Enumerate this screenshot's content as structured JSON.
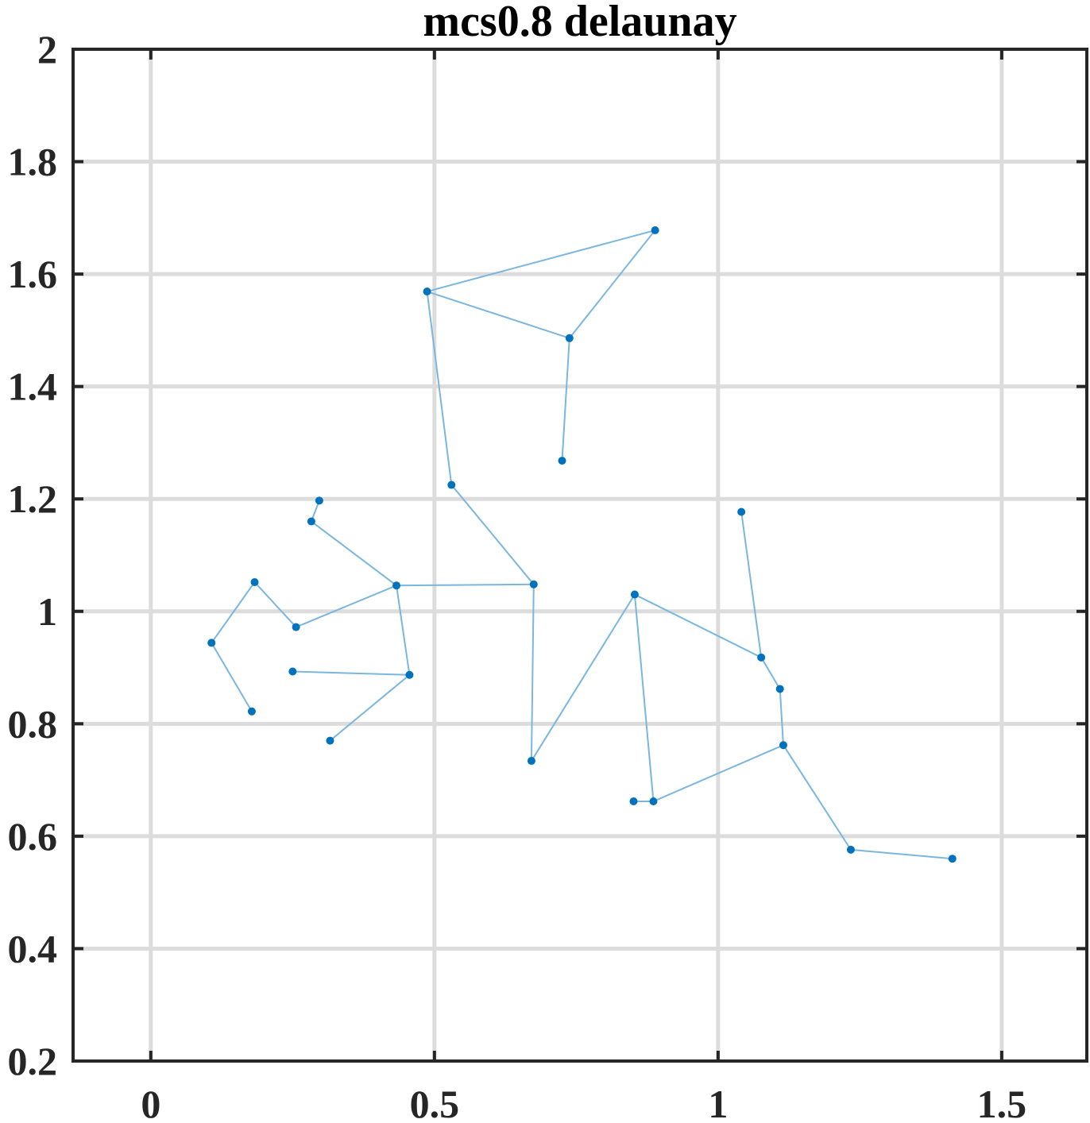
{
  "chart_data": {
    "type": "scatter",
    "title": "mcs0.8 delaunay",
    "xlabel": "",
    "ylabel": "",
    "xlim": [
      -0.137,
      1.65
    ],
    "ylim": [
      0.2,
      2.0
    ],
    "xticks": [
      0,
      0.5,
      1,
      1.5
    ],
    "xtick_labels": [
      "0",
      "0.5",
      "1",
      "1.5"
    ],
    "yticks": [
      0.2,
      0.4,
      0.6,
      0.8,
      1.0,
      1.2,
      1.4,
      1.6,
      1.8,
      2.0
    ],
    "ytick_labels": [
      "0.2",
      "0.4",
      "0.6",
      "0.8",
      "1",
      "1.2",
      "1.4",
      "1.6",
      "1.8",
      "2"
    ],
    "grid": true,
    "colors": {
      "points": "#0072bd",
      "edges": "#7ab6de",
      "grid": "#dcdcdc",
      "axes": "#262626"
    },
    "points": [
      {
        "x": 0.107,
        "y": 0.944
      },
      {
        "x": 0.183,
        "y": 1.052
      },
      {
        "x": 0.256,
        "y": 0.972
      },
      {
        "x": 0.178,
        "y": 0.822
      },
      {
        "x": 0.25,
        "y": 0.893
      },
      {
        "x": 0.316,
        "y": 0.77
      },
      {
        "x": 0.283,
        "y": 1.16
      },
      {
        "x": 0.297,
        "y": 1.197
      },
      {
        "x": 0.433,
        "y": 1.046
      },
      {
        "x": 0.456,
        "y": 0.887
      },
      {
        "x": 0.487,
        "y": 1.569
      },
      {
        "x": 0.53,
        "y": 1.225
      },
      {
        "x": 0.675,
        "y": 1.048
      },
      {
        "x": 0.671,
        "y": 0.734
      },
      {
        "x": 0.725,
        "y": 1.268
      },
      {
        "x": 0.738,
        "y": 1.486
      },
      {
        "x": 0.889,
        "y": 1.678
      },
      {
        "x": 0.853,
        "y": 1.03
      },
      {
        "x": 0.851,
        "y": 0.662
      },
      {
        "x": 0.886,
        "y": 0.662
      },
      {
        "x": 1.041,
        "y": 1.177
      },
      {
        "x": 1.076,
        "y": 0.918
      },
      {
        "x": 1.109,
        "y": 0.862
      },
      {
        "x": 1.115,
        "y": 0.762
      },
      {
        "x": 1.234,
        "y": 0.576
      },
      {
        "x": 1.413,
        "y": 0.56
      }
    ],
    "edges": [
      [
        0,
        1
      ],
      [
        1,
        2
      ],
      [
        0,
        3
      ],
      [
        2,
        8
      ],
      [
        6,
        8
      ],
      [
        6,
        7
      ],
      [
        8,
        9
      ],
      [
        4,
        9
      ],
      [
        5,
        9
      ],
      [
        8,
        12
      ],
      [
        12,
        11
      ],
      [
        11,
        10
      ],
      [
        10,
        16
      ],
      [
        16,
        15
      ],
      [
        10,
        15
      ],
      [
        15,
        14
      ],
      [
        12,
        13
      ],
      [
        13,
        17
      ],
      [
        17,
        21
      ],
      [
        17,
        19
      ],
      [
        19,
        18
      ],
      [
        21,
        20
      ],
      [
        21,
        22
      ],
      [
        22,
        23
      ],
      [
        23,
        19
      ],
      [
        23,
        24
      ],
      [
        24,
        25
      ]
    ]
  }
}
